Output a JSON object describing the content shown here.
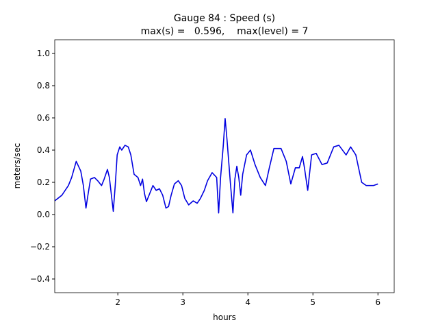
{
  "chart_data": {
    "type": "line",
    "title": [
      "Gauge 84 : Speed (s)",
      "max(s) =   0.596,    max(level) = 7"
    ],
    "xlabel": "hours",
    "ylabel": "meters/sec",
    "xlim": [
      1.03,
      6.25
    ],
    "ylim": [
      -0.485,
      1.085
    ],
    "xticks": [
      2,
      3,
      4,
      5,
      6
    ],
    "yticks": [
      {
        "value": -0.4,
        "label": "−0.4"
      },
      {
        "value": -0.2,
        "label": "−0.2"
      },
      {
        "value": 0,
        "label": "0.0"
      },
      {
        "value": 0.2,
        "label": "0.2"
      },
      {
        "value": 0.4,
        "label": "0.4"
      },
      {
        "value": 0.6,
        "label": "0.6"
      },
      {
        "value": 0.8,
        "label": "0.8"
      },
      {
        "value": 1.0,
        "label": "1.0"
      }
    ],
    "grid": false,
    "x": [
      1.03,
      1.14,
      1.24,
      1.29,
      1.36,
      1.43,
      1.47,
      1.51,
      1.54,
      1.58,
      1.64,
      1.69,
      1.75,
      1.79,
      1.84,
      1.87,
      1.93,
      1.96,
      1.99,
      2.03,
      2.06,
      2.11,
      2.16,
      2.2,
      2.25,
      2.31,
      2.35,
      2.38,
      2.41,
      2.44,
      2.48,
      2.54,
      2.59,
      2.64,
      2.69,
      2.74,
      2.78,
      2.82,
      2.87,
      2.93,
      2.98,
      3.03,
      3.09,
      3.16,
      3.22,
      3.27,
      3.33,
      3.38,
      3.45,
      3.52,
      3.55,
      3.58,
      3.62,
      3.65,
      3.68,
      3.73,
      3.77,
      3.8,
      3.83,
      3.86,
      3.89,
      3.92,
      3.98,
      4.04,
      4.11,
      4.19,
      4.27,
      4.33,
      4.4,
      4.51,
      4.59,
      4.66,
      4.73,
      4.79,
      4.84,
      4.87,
      4.92,
      4.98,
      5.05,
      5.14,
      5.22,
      5.32,
      5.4,
      5.51,
      5.58,
      5.66,
      5.75,
      5.82,
      5.93,
      6.0
    ],
    "series": [
      {
        "color": "#0000e0",
        "values": [
          0.085,
          0.12,
          0.18,
          0.23,
          0.33,
          0.27,
          0.18,
          0.04,
          0.12,
          0.22,
          0.23,
          0.21,
          0.18,
          0.22,
          0.28,
          0.23,
          0.02,
          0.18,
          0.37,
          0.42,
          0.4,
          0.43,
          0.42,
          0.37,
          0.25,
          0.23,
          0.18,
          0.22,
          0.13,
          0.08,
          0.12,
          0.18,
          0.15,
          0.16,
          0.12,
          0.04,
          0.05,
          0.12,
          0.19,
          0.21,
          0.18,
          0.1,
          0.06,
          0.085,
          0.07,
          0.1,
          0.15,
          0.21,
          0.26,
          0.23,
          0.01,
          0.23,
          0.42,
          0.596,
          0.46,
          0.2,
          0.01,
          0.22,
          0.3,
          0.23,
          0.12,
          0.25,
          0.37,
          0.4,
          0.31,
          0.23,
          0.18,
          0.29,
          0.41,
          0.41,
          0.33,
          0.19,
          0.29,
          0.29,
          0.36,
          0.29,
          0.15,
          0.37,
          0.38,
          0.31,
          0.32,
          0.42,
          0.43,
          0.37,
          0.42,
          0.37,
          0.2,
          0.18,
          0.18,
          0.19
        ]
      }
    ]
  }
}
